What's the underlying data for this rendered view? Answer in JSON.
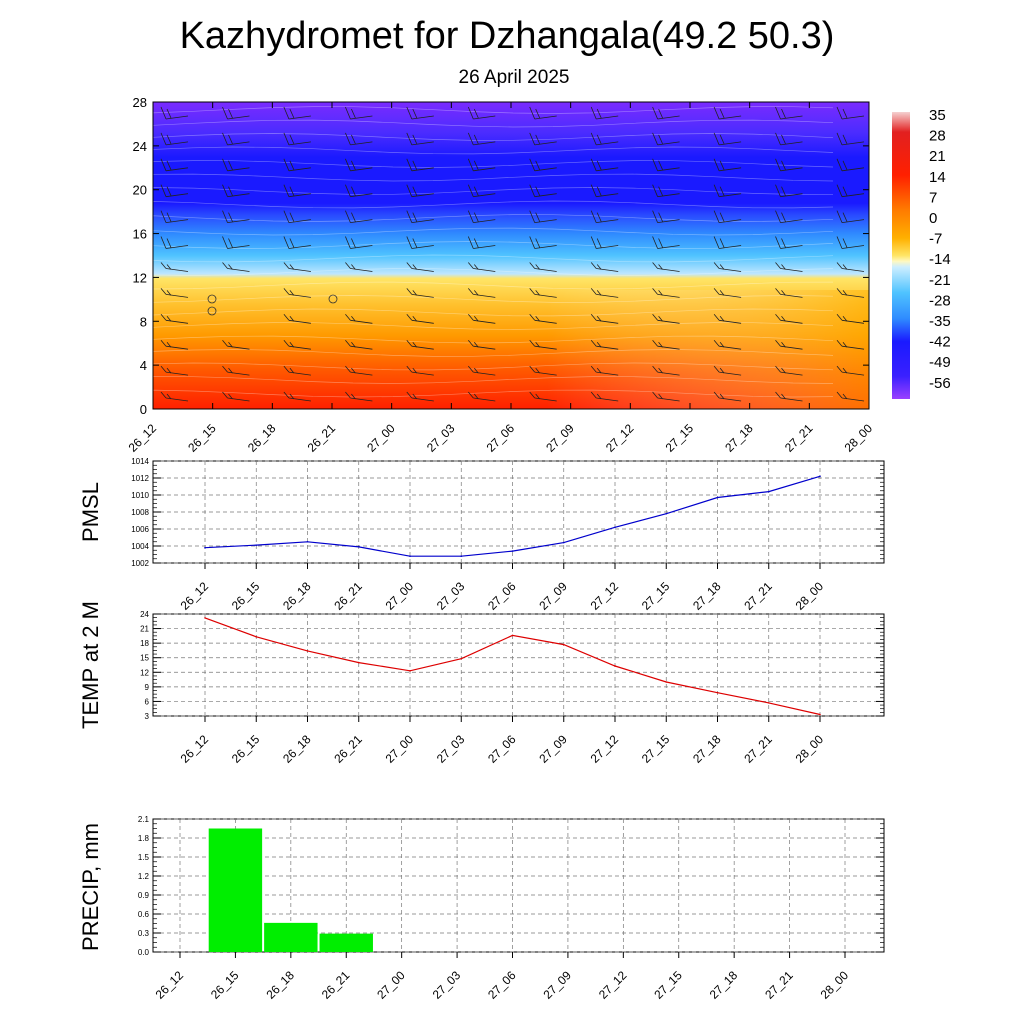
{
  "header": {
    "title": "Kazhydromet for Dzhangala(49.2 50.3)",
    "subtitle": "26 April 2025"
  },
  "chart_data": [
    {
      "type": "heatmap",
      "xlabel": "",
      "ylabel": "",
      "x_ticks": [
        "26_12",
        "26_15",
        "26_18",
        "26_21",
        "27_00",
        "27_03",
        "27_06",
        "27_09",
        "27_12",
        "27_15",
        "27_18",
        "27_21",
        "28_00"
      ],
      "y_ticks": [
        "0",
        "4",
        "8",
        "12",
        "16",
        "20",
        "24",
        "28"
      ],
      "ylim": [
        0,
        28
      ],
      "colorbar_labels": [
        "35",
        "28",
        "21",
        "14",
        "7",
        "0",
        "-7",
        "-14",
        "-21",
        "-28",
        "-35",
        "-42",
        "-49",
        "-56"
      ],
      "colors": {
        "blue": "#1a1aff",
        "purple": "#7a2bff",
        "light_blue": "#4fc3ff",
        "yellow": "#ffe566",
        "orange": "#ff8a00",
        "red": "#ff2000"
      }
    },
    {
      "type": "line",
      "ylabel": "PMSL",
      "x": [
        "26_12",
        "26_15",
        "26_18",
        "26_21",
        "27_00",
        "27_03",
        "27_06",
        "27_09",
        "27_12",
        "27_15",
        "27_18",
        "27_21",
        "28_00"
      ],
      "y_ticks": [
        "1002",
        "1004",
        "1006",
        "1008",
        "1010",
        "1012",
        "1014"
      ],
      "ylim": [
        1002,
        1014
      ],
      "values": [
        1003.8,
        1004.1,
        1004.5,
        1003.9,
        1002.8,
        1002.8,
        1003.4,
        1004.4,
        1006.2,
        1007.8,
        1009.7,
        1010.4,
        1012.2
      ],
      "color": "#0000cc"
    },
    {
      "type": "line",
      "ylabel": "TEMP at 2 M",
      "x": [
        "26_12",
        "26_15",
        "26_18",
        "26_21",
        "27_00",
        "27_03",
        "27_06",
        "27_09",
        "27_12",
        "27_15",
        "27_18",
        "27_21",
        "28_00"
      ],
      "y_ticks": [
        "3",
        "6",
        "9",
        "12",
        "15",
        "18",
        "21",
        "24"
      ],
      "ylim": [
        3,
        24
      ],
      "values": [
        23.2,
        19.3,
        16.4,
        14.0,
        12.3,
        14.8,
        19.6,
        17.7,
        13.3,
        10.0,
        7.8,
        5.7,
        3.3
      ],
      "color": "#dd0000"
    },
    {
      "type": "bar",
      "ylabel": "PRECIP, mm",
      "categories": [
        "26_12",
        "26_15",
        "26_18",
        "26_21",
        "27_00",
        "27_03",
        "27_06",
        "27_09",
        "27_12",
        "27_15",
        "27_18",
        "27_21",
        "28_00"
      ],
      "y_ticks": [
        "0.0",
        "0.3",
        "0.6",
        "0.9",
        "1.2",
        "1.5",
        "1.8",
        "2.1"
      ],
      "ylim": [
        0,
        2.1
      ],
      "values": [
        0,
        1.95,
        0.46,
        0.29,
        0,
        0,
        0,
        0,
        0,
        0,
        0,
        0,
        0
      ],
      "color": "#00ee00"
    }
  ]
}
